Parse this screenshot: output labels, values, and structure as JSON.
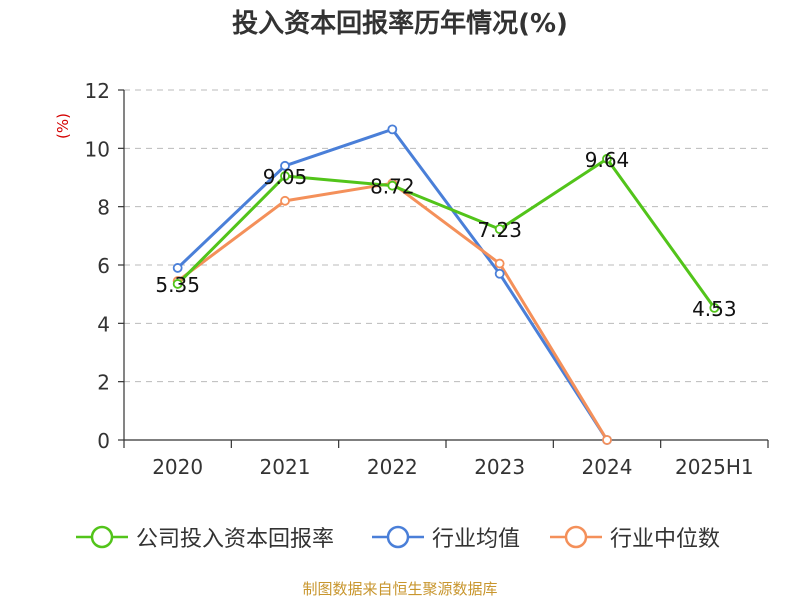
{
  "source_note": "制图数据来自恒生聚源数据库",
  "chart_data": {
    "type": "line",
    "title": "投入资本回报率历年情况(%)",
    "ylabel": "(%)",
    "xlabel": "",
    "categories": [
      "2020",
      "2021",
      "2022",
      "2023",
      "2024",
      "2025H1"
    ],
    "ylim": [
      0,
      12
    ],
    "yticks": [
      0,
      2,
      4,
      6,
      8,
      10,
      12
    ],
    "grid": true,
    "legend_position": "bottom",
    "series": [
      {
        "name": "公司投入资本回报率",
        "color": "#52c41a",
        "values": [
          5.35,
          9.05,
          8.72,
          7.23,
          9.64,
          4.53
        ],
        "data_labels": [
          "5.35",
          "9.05",
          "8.72",
          "7.23",
          "9.64",
          "4.53"
        ]
      },
      {
        "name": "行业均值",
        "color": "#4a7fd8",
        "values": [
          5.9,
          9.4,
          10.65,
          5.7,
          0,
          null
        ]
      },
      {
        "name": "行业中位数",
        "color": "#f4905a",
        "values": [
          5.45,
          8.2,
          8.8,
          6.05,
          0,
          null
        ]
      }
    ]
  }
}
